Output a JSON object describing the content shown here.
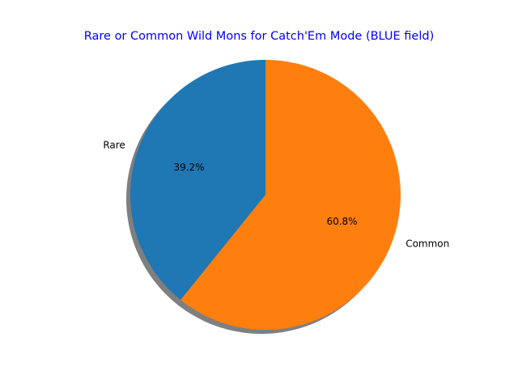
{
  "chart_data": {
    "type": "pie",
    "title": "Rare or Common Wild Mons for Catch'Em Mode (BLUE field)",
    "title_color": "#0000ff",
    "categories": [
      "Rare",
      "Common"
    ],
    "values": [
      39.2,
      60.8
    ],
    "value_labels": [
      "39.2%",
      "60.8%"
    ],
    "colors": [
      "#1f77b4",
      "#ff7f0e"
    ],
    "start_angle_deg": 90,
    "direction": "counterclockwise",
    "shadow": true,
    "shadow_color": "#000000",
    "legend": "none"
  }
}
